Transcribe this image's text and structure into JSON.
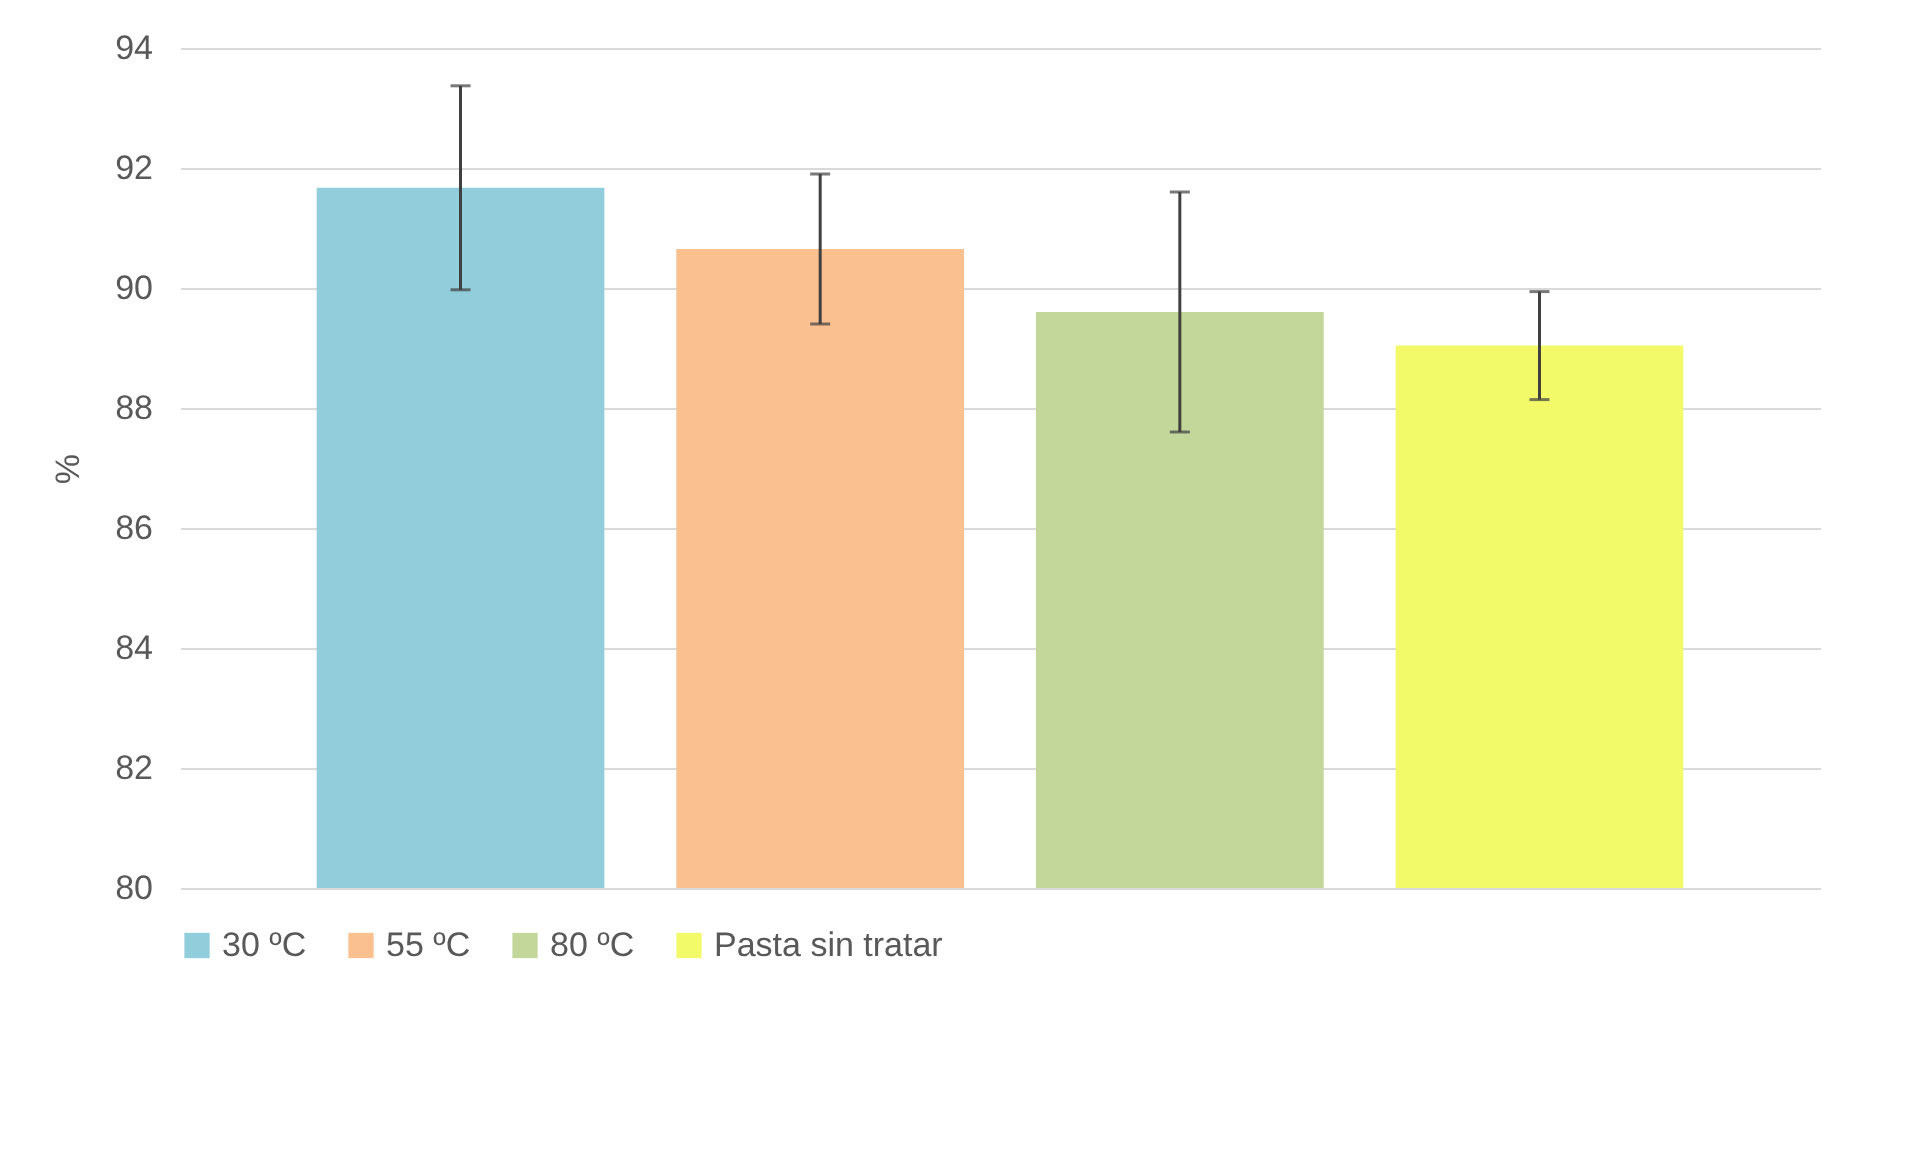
{
  "chart_data": {
    "type": "bar",
    "ylabel": "%",
    "categories": [
      null
    ],
    "series": [
      {
        "name": "30 ºC",
        "color": "#92cddc",
        "values": [
          91.67
        ],
        "errors": [
          1.7
        ]
      },
      {
        "name": "55 ºC",
        "color": "#fac090",
        "values": [
          90.65
        ],
        "errors": [
          1.25
        ]
      },
      {
        "name": "80 ºC",
        "color": "#c4d79b",
        "values": [
          89.6
        ],
        "errors": [
          2.0
        ]
      },
      {
        "name": "Pasta sin tratar",
        "color": "#f2fa6a",
        "values": [
          89.04
        ],
        "errors": [
          0.9
        ]
      }
    ],
    "ylim": [
      80,
      94
    ],
    "yticks": [
      80,
      82,
      84,
      86,
      88,
      90,
      92,
      94
    ],
    "grid": "y",
    "legend": "bottom"
  }
}
